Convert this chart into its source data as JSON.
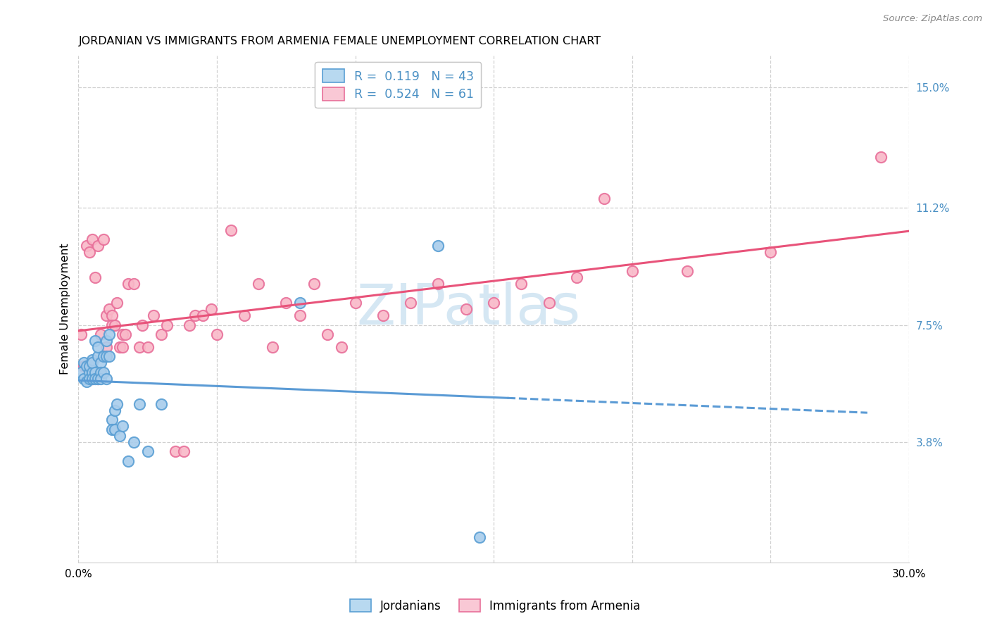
{
  "title": "JORDANIAN VS IMMIGRANTS FROM ARMENIA FEMALE UNEMPLOYMENT CORRELATION CHART",
  "source": "Source: ZipAtlas.com",
  "ylabel": "Female Unemployment",
  "x_min": 0.0,
  "x_max": 0.3,
  "y_min": 0.0,
  "y_max": 0.16,
  "x_ticks": [
    0.0,
    0.05,
    0.1,
    0.15,
    0.2,
    0.25,
    0.3
  ],
  "x_tick_labels": [
    "0.0%",
    "",
    "",
    "",
    "",
    "",
    "30.0%"
  ],
  "y_ticks": [
    0.038,
    0.075,
    0.112,
    0.15
  ],
  "y_tick_labels": [
    "3.8%",
    "7.5%",
    "11.2%",
    "15.0%"
  ],
  "jordanian_R": 0.119,
  "jordanian_N": 43,
  "armenia_R": 0.524,
  "armenia_N": 61,
  "blue_scatter_face": "#a8cceb",
  "blue_scatter_edge": "#5a9fd4",
  "pink_scatter_face": "#f9b8c8",
  "pink_scatter_edge": "#e8709a",
  "blue_line_color": "#5b9bd5",
  "pink_line_color": "#e8537a",
  "legend_blue_face": "#b8d9f0",
  "legend_pink_face": "#f9c8d5",
  "watermark_color": "#c8dff0",
  "grid_color": "#d0d0d0",
  "title_fontsize": 11.5,
  "tick_label_color": "#4a90c4",
  "watermark_text": "ZIPatlas",
  "jordanians_x": [
    0.001,
    0.002,
    0.002,
    0.003,
    0.003,
    0.004,
    0.004,
    0.004,
    0.005,
    0.005,
    0.005,
    0.005,
    0.006,
    0.006,
    0.006,
    0.007,
    0.007,
    0.007,
    0.008,
    0.008,
    0.008,
    0.009,
    0.009,
    0.01,
    0.01,
    0.01,
    0.011,
    0.011,
    0.012,
    0.012,
    0.013,
    0.013,
    0.014,
    0.015,
    0.016,
    0.018,
    0.02,
    0.022,
    0.025,
    0.03,
    0.08,
    0.13,
    0.145
  ],
  "jordanians_y": [
    0.06,
    0.058,
    0.063,
    0.062,
    0.057,
    0.06,
    0.058,
    0.062,
    0.064,
    0.06,
    0.063,
    0.058,
    0.07,
    0.06,
    0.058,
    0.065,
    0.068,
    0.058,
    0.063,
    0.06,
    0.058,
    0.065,
    0.06,
    0.07,
    0.065,
    0.058,
    0.072,
    0.065,
    0.045,
    0.042,
    0.048,
    0.042,
    0.05,
    0.04,
    0.043,
    0.032,
    0.038,
    0.05,
    0.035,
    0.05,
    0.082,
    0.1,
    0.008
  ],
  "armenia_x": [
    0.001,
    0.002,
    0.003,
    0.004,
    0.004,
    0.005,
    0.005,
    0.006,
    0.007,
    0.007,
    0.008,
    0.009,
    0.01,
    0.01,
    0.011,
    0.012,
    0.012,
    0.013,
    0.014,
    0.015,
    0.016,
    0.016,
    0.017,
    0.018,
    0.02,
    0.022,
    0.023,
    0.025,
    0.027,
    0.03,
    0.032,
    0.035,
    0.038,
    0.04,
    0.042,
    0.045,
    0.048,
    0.05,
    0.055,
    0.06,
    0.065,
    0.07,
    0.075,
    0.08,
    0.085,
    0.09,
    0.095,
    0.1,
    0.11,
    0.12,
    0.13,
    0.14,
    0.15,
    0.16,
    0.17,
    0.18,
    0.19,
    0.2,
    0.22,
    0.25,
    0.29
  ],
  "armenia_y": [
    0.072,
    0.062,
    0.1,
    0.098,
    0.06,
    0.102,
    0.058,
    0.09,
    0.1,
    0.058,
    0.072,
    0.102,
    0.078,
    0.068,
    0.08,
    0.078,
    0.075,
    0.075,
    0.082,
    0.068,
    0.072,
    0.068,
    0.072,
    0.088,
    0.088,
    0.068,
    0.075,
    0.068,
    0.078,
    0.072,
    0.075,
    0.035,
    0.035,
    0.075,
    0.078,
    0.078,
    0.08,
    0.072,
    0.105,
    0.078,
    0.088,
    0.068,
    0.082,
    0.078,
    0.088,
    0.072,
    0.068,
    0.082,
    0.078,
    0.082,
    0.088,
    0.08,
    0.082,
    0.088,
    0.082,
    0.09,
    0.115,
    0.092,
    0.092,
    0.098,
    0.128
  ]
}
